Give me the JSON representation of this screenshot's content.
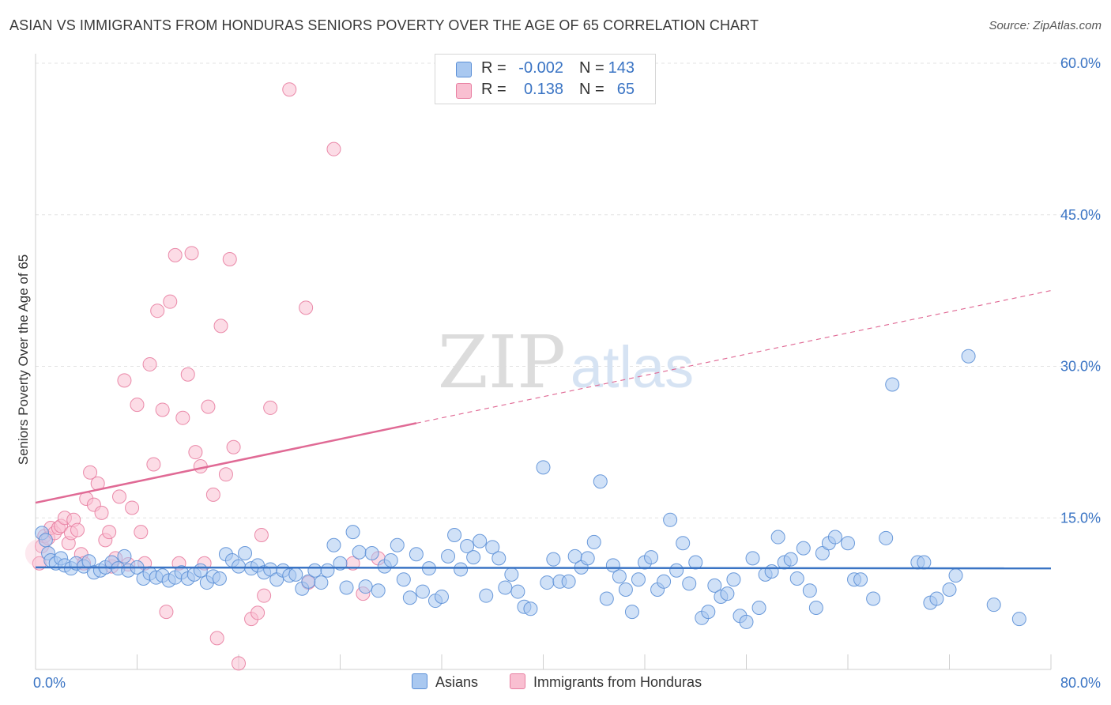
{
  "title": "ASIAN VS IMMIGRANTS FROM HONDURAS SENIORS POVERTY OVER THE AGE OF 65 CORRELATION CHART",
  "source": "Source: ZipAtlas.com",
  "watermark": {
    "zip": "ZIP",
    "atlas": "atlas"
  },
  "legend_top": [
    {
      "r_label": "R =",
      "r_value": "-0.002",
      "n_label": "N =",
      "n_value": "143",
      "color": "#a9c8f0",
      "stroke": "#5b8fd6"
    },
    {
      "r_label": "R =",
      "r_value": "0.138",
      "n_label": "N =",
      "n_value": "65",
      "color": "#f9bfd1",
      "stroke": "#e87ea1"
    }
  ],
  "legend_bottom": [
    {
      "label": "Asians",
      "color": "#a9c8f0",
      "stroke": "#5b8fd6"
    },
    {
      "label": "Immigrants from Honduras",
      "color": "#f9bfd1",
      "stroke": "#e87ea1"
    }
  ],
  "chart_data": {
    "type": "scatter",
    "title": "ASIAN VS IMMIGRANTS FROM HONDURAS SENIORS POVERTY OVER THE AGE OF 65 CORRELATION CHART",
    "xlabel": "",
    "ylabel": "Seniors Poverty Over the Age of 65",
    "xlim": [
      0,
      80
    ],
    "ylim": [
      0,
      60
    ],
    "x_tick_labels": [
      "0.0%",
      "80.0%"
    ],
    "y_tick_values": [
      15,
      30,
      45,
      60
    ],
    "y_tick_labels": [
      "15.0%",
      "30.0%",
      "45.0%",
      "60.0%"
    ],
    "x_minor_ticks": [
      0,
      8,
      16,
      24,
      32,
      40,
      48,
      56,
      64,
      72,
      80
    ],
    "grid": "horizontal dashed",
    "series": [
      {
        "name": "Asians",
        "color": "#a9c8f0",
        "stroke": "#5b8fd6",
        "trend": {
          "x0": 0,
          "y0": 10.1,
          "x1": 80,
          "y1": 10.0,
          "style": "solid",
          "color": "#3a74c4"
        },
        "points": [
          [
            0.5,
            13.5
          ],
          [
            0.8,
            12.8
          ],
          [
            1.0,
            11.5
          ],
          [
            1.2,
            10.8
          ],
          [
            1.6,
            10.5
          ],
          [
            2.0,
            11.0
          ],
          [
            2.3,
            10.3
          ],
          [
            2.8,
            10.0
          ],
          [
            3.2,
            10.5
          ],
          [
            3.8,
            10.2
          ],
          [
            4.2,
            10.7
          ],
          [
            4.6,
            9.6
          ],
          [
            5.1,
            9.8
          ],
          [
            5.5,
            10.1
          ],
          [
            6.0,
            10.6
          ],
          [
            6.5,
            10.0
          ],
          [
            7.0,
            11.2
          ],
          [
            7.3,
            9.8
          ],
          [
            8.0,
            10.1
          ],
          [
            8.5,
            9.0
          ],
          [
            9.0,
            9.5
          ],
          [
            9.5,
            9.1
          ],
          [
            10.0,
            9.3
          ],
          [
            10.5,
            8.8
          ],
          [
            11.0,
            9.1
          ],
          [
            11.5,
            9.6
          ],
          [
            12.0,
            9.0
          ],
          [
            12.5,
            9.4
          ],
          [
            13.0,
            9.8
          ],
          [
            13.5,
            8.6
          ],
          [
            14.0,
            9.2
          ],
          [
            14.5,
            9.0
          ],
          [
            15.0,
            11.4
          ],
          [
            15.5,
            10.8
          ],
          [
            16.0,
            10.2
          ],
          [
            16.5,
            11.5
          ],
          [
            17.0,
            10.0
          ],
          [
            17.5,
            10.3
          ],
          [
            18.0,
            9.6
          ],
          [
            18.5,
            9.9
          ],
          [
            19.0,
            8.9
          ],
          [
            19.5,
            9.8
          ],
          [
            20.0,
            9.3
          ],
          [
            20.5,
            9.4
          ],
          [
            21.0,
            8.0
          ],
          [
            21.5,
            8.7
          ],
          [
            22.0,
            9.8
          ],
          [
            22.5,
            8.6
          ],
          [
            23.0,
            9.8
          ],
          [
            23.5,
            12.3
          ],
          [
            24.0,
            10.5
          ],
          [
            24.5,
            8.1
          ],
          [
            25.0,
            13.6
          ],
          [
            25.5,
            11.6
          ],
          [
            26.0,
            8.2
          ],
          [
            26.5,
            11.5
          ],
          [
            27.0,
            7.8
          ],
          [
            27.5,
            10.2
          ],
          [
            28.0,
            10.8
          ],
          [
            28.5,
            12.3
          ],
          [
            29.0,
            8.9
          ],
          [
            29.5,
            7.1
          ],
          [
            30.0,
            11.4
          ],
          [
            30.5,
            7.7
          ],
          [
            31.0,
            10.0
          ],
          [
            31.5,
            6.8
          ],
          [
            32.0,
            7.2
          ],
          [
            32.5,
            11.2
          ],
          [
            33.0,
            13.3
          ],
          [
            33.5,
            9.9
          ],
          [
            34.0,
            12.2
          ],
          [
            34.5,
            11.1
          ],
          [
            35.0,
            12.7
          ],
          [
            35.5,
            7.3
          ],
          [
            36.0,
            12.1
          ],
          [
            36.5,
            11.0
          ],
          [
            37.0,
            8.1
          ],
          [
            37.5,
            9.4
          ],
          [
            38.0,
            7.7
          ],
          [
            38.5,
            6.2
          ],
          [
            39.0,
            6.0
          ],
          [
            40.0,
            20.0
          ],
          [
            40.3,
            8.6
          ],
          [
            40.8,
            10.9
          ],
          [
            41.3,
            8.7
          ],
          [
            42.0,
            8.7
          ],
          [
            42.5,
            11.2
          ],
          [
            43.0,
            10.1
          ],
          [
            43.5,
            11.0
          ],
          [
            44.0,
            12.6
          ],
          [
            44.5,
            18.6
          ],
          [
            45.0,
            7.0
          ],
          [
            45.5,
            10.3
          ],
          [
            46.0,
            9.2
          ],
          [
            46.5,
            7.9
          ],
          [
            47.0,
            5.7
          ],
          [
            47.5,
            8.9
          ],
          [
            48.0,
            10.6
          ],
          [
            48.5,
            11.1
          ],
          [
            49.0,
            7.9
          ],
          [
            49.5,
            8.7
          ],
          [
            50.0,
            14.8
          ],
          [
            50.5,
            9.8
          ],
          [
            51.0,
            12.5
          ],
          [
            51.5,
            8.5
          ],
          [
            52.0,
            10.6
          ],
          [
            52.5,
            5.1
          ],
          [
            53.0,
            5.7
          ],
          [
            53.5,
            8.3
          ],
          [
            54.0,
            7.2
          ],
          [
            54.5,
            7.5
          ],
          [
            55.0,
            8.9
          ],
          [
            55.5,
            5.3
          ],
          [
            56.0,
            4.7
          ],
          [
            56.5,
            11.0
          ],
          [
            57.0,
            6.1
          ],
          [
            57.5,
            9.4
          ],
          [
            58.0,
            9.7
          ],
          [
            58.5,
            13.1
          ],
          [
            59.0,
            10.6
          ],
          [
            59.5,
            10.9
          ],
          [
            60.0,
            9.0
          ],
          [
            60.5,
            12.0
          ],
          [
            61.0,
            7.8
          ],
          [
            61.5,
            6.1
          ],
          [
            62.0,
            11.5
          ],
          [
            62.5,
            12.5
          ],
          [
            63.0,
            13.1
          ],
          [
            64.0,
            12.5
          ],
          [
            64.5,
            8.9
          ],
          [
            65.0,
            8.9
          ],
          [
            66.0,
            7.0
          ],
          [
            67.0,
            13.0
          ],
          [
            67.5,
            28.2
          ],
          [
            69.5,
            10.6
          ],
          [
            70.0,
            10.6
          ],
          [
            70.5,
            6.6
          ],
          [
            71.0,
            7.0
          ],
          [
            72.0,
            7.9
          ],
          [
            72.5,
            9.3
          ],
          [
            73.5,
            31.0
          ],
          [
            75.5,
            6.4
          ],
          [
            77.5,
            5.0
          ]
        ]
      },
      {
        "name": "Immigrants from Honduras",
        "color": "#f9bfd1",
        "stroke": "#e87ea1",
        "trend": {
          "x0": 0,
          "y0": 16.5,
          "x1": 80,
          "y1": 37.5,
          "solid_until_x": 30,
          "style": "solid then dashed",
          "color": "#e06a95"
        },
        "points": [
          [
            0.3,
            10.5
          ],
          [
            0.5,
            12.2
          ],
          [
            0.7,
            13.2
          ],
          [
            1.0,
            13.0
          ],
          [
            1.2,
            14.0
          ],
          [
            1.5,
            13.5
          ],
          [
            1.8,
            14.0
          ],
          [
            2.0,
            14.2
          ],
          [
            2.3,
            15.0
          ],
          [
            2.6,
            12.5
          ],
          [
            2.8,
            13.5
          ],
          [
            3.0,
            14.8
          ],
          [
            3.3,
            13.8
          ],
          [
            3.6,
            11.4
          ],
          [
            3.8,
            10.5
          ],
          [
            4.0,
            16.9
          ],
          [
            4.3,
            19.5
          ],
          [
            4.6,
            16.3
          ],
          [
            4.9,
            18.4
          ],
          [
            5.2,
            15.5
          ],
          [
            5.5,
            12.8
          ],
          [
            5.8,
            13.6
          ],
          [
            6.0,
            10.2
          ],
          [
            6.3,
            11.0
          ],
          [
            6.6,
            17.1
          ],
          [
            7.0,
            28.6
          ],
          [
            7.3,
            10.4
          ],
          [
            7.6,
            16.0
          ],
          [
            8.0,
            26.2
          ],
          [
            8.3,
            13.6
          ],
          [
            8.6,
            10.5
          ],
          [
            9.0,
            30.2
          ],
          [
            9.3,
            20.3
          ],
          [
            9.6,
            35.5
          ],
          [
            10.0,
            25.7
          ],
          [
            10.3,
            5.7
          ],
          [
            10.6,
            36.4
          ],
          [
            11.0,
            41.0
          ],
          [
            11.3,
            10.5
          ],
          [
            11.6,
            24.9
          ],
          [
            12.0,
            29.2
          ],
          [
            12.3,
            41.2
          ],
          [
            12.6,
            21.5
          ],
          [
            13.0,
            20.1
          ],
          [
            13.3,
            10.5
          ],
          [
            13.6,
            26.0
          ],
          [
            14.0,
            17.3
          ],
          [
            14.3,
            3.1
          ],
          [
            14.6,
            34.0
          ],
          [
            15.0,
            19.3
          ],
          [
            15.3,
            40.6
          ],
          [
            15.6,
            22.0
          ],
          [
            16.0,
            0.6
          ],
          [
            17.0,
            5.0
          ],
          [
            17.5,
            5.6
          ],
          [
            17.8,
            13.3
          ],
          [
            18.0,
            7.3
          ],
          [
            18.5,
            25.9
          ],
          [
            20.0,
            57.4
          ],
          [
            21.3,
            35.8
          ],
          [
            21.5,
            8.6
          ],
          [
            23.5,
            51.5
          ],
          [
            25.0,
            10.5
          ],
          [
            25.8,
            7.5
          ],
          [
            27.0,
            11.0
          ]
        ]
      }
    ]
  }
}
